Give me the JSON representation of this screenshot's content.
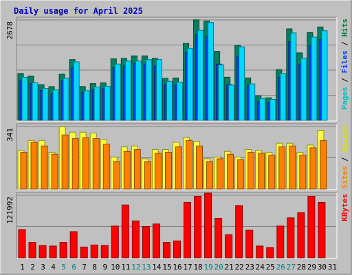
{
  "chart_data": {
    "type": "bar",
    "title": "Daily usage for April 2025",
    "days": [
      "1",
      "2",
      "3",
      "4",
      "5",
      "6",
      "7",
      "8",
      "9",
      "10",
      "11",
      "12",
      "13",
      "14",
      "15",
      "16",
      "17",
      "18",
      "19",
      "20",
      "21",
      "22",
      "23",
      "24",
      "25",
      "26",
      "27",
      "28",
      "29",
      "30",
      "31"
    ],
    "weekend_days": [
      "5",
      "6",
      "12",
      "13",
      "19",
      "20",
      "26",
      "27"
    ],
    "panels": [
      {
        "name": "pages-files-hits",
        "ymax_label": "2678",
        "ymax": 2678,
        "legend": [
          {
            "text": "Pages",
            "color": "#00c0c0"
          },
          {
            "text": " / ",
            "color": "#000000"
          },
          {
            "text": "Files",
            "color": "#0040ff"
          },
          {
            "text": " / ",
            "color": "#000000"
          },
          {
            "text": "Hits",
            "color": "#008040"
          }
        ],
        "series": [
          {
            "legend": "Hits",
            "color": "#008060",
            "values": [
              1250,
              1180,
              950,
              900,
              1230,
              1620,
              900,
              980,
              1000,
              1640,
              1650,
              1720,
              1720,
              1650,
              1120,
              1130,
              2050,
              2680,
              2650,
              1840,
              1150,
              2000,
              1130,
              650,
              600,
              1350,
              2440,
              1800,
              2340,
              2490,
              0
            ]
          },
          {
            "legend": "Files",
            "color": "#0040ff",
            "values": [
              1050,
              980,
              800,
              700,
              1050,
              1400,
              750,
              830,
              850,
              1400,
              1450,
              1520,
              1500,
              1450,
              950,
              950,
              1800,
              2300,
              2250,
              1500,
              950,
              1700,
              930,
              500,
              480,
              1150,
              2100,
              1500,
              2000,
              2150,
              0
            ]
          },
          {
            "legend": "Pages",
            "color": "#00d8ff",
            "values": [
              1150,
              1000,
              850,
              810,
              1120,
              1560,
              790,
              890,
              910,
              1500,
              1580,
              1580,
              1620,
              1620,
              1040,
              1020,
              1920,
              2400,
              2610,
              1480,
              940,
              1960,
              970,
              580,
              560,
              1250,
              2330,
              1660,
              2220,
              2390,
              0
            ]
          }
        ]
      },
      {
        "name": "visits-sites",
        "ymax_label": "341",
        "ymax": 341,
        "legend": [
          {
            "text": "Sites",
            "color": "#ff8000"
          },
          {
            "text": " / ",
            "color": "#000000"
          },
          {
            "text": "Visits",
            "color": "#e0e000"
          }
        ],
        "series": [
          {
            "legend": "Visits",
            "color": "#ffff40",
            "values": [
              210,
              265,
              265,
              200,
              340,
              310,
              310,
              305,
              270,
              175,
              230,
              235,
              165,
              215,
              215,
              255,
              280,
              260,
              165,
              175,
              205,
              175,
              215,
              210,
              200,
              250,
              250,
              200,
              240,
              320,
              0
            ]
          },
          {
            "legend": "Sites",
            "color": "#ff8000",
            "values": [
              200,
              255,
              235,
              190,
              295,
              275,
              280,
              275,
              245,
              150,
              205,
              215,
              150,
              195,
              200,
              230,
              265,
              235,
              150,
              165,
              190,
              160,
              200,
              195,
              185,
              230,
              235,
              185,
              225,
              265,
              0
            ]
          }
        ]
      },
      {
        "name": "kbytes",
        "ymax_label": "121992",
        "ymax": 121992,
        "legend": [
          {
            "text": "KBytes",
            "color": "#ff0000"
          }
        ],
        "series": [
          {
            "legend": "KBytes",
            "color": "#ff0000",
            "values": [
              55000,
              30000,
              24000,
              23000,
              30000,
              51000,
              21000,
              25000,
              24000,
              62000,
              103000,
              72000,
              61000,
              66000,
              30000,
              33000,
              108000,
              120000,
              126000,
              77000,
              45000,
              102000,
              54000,
              23000,
              20000,
              62000,
              78000,
              88000,
              120000,
              108000,
              0
            ]
          }
        ]
      }
    ]
  }
}
